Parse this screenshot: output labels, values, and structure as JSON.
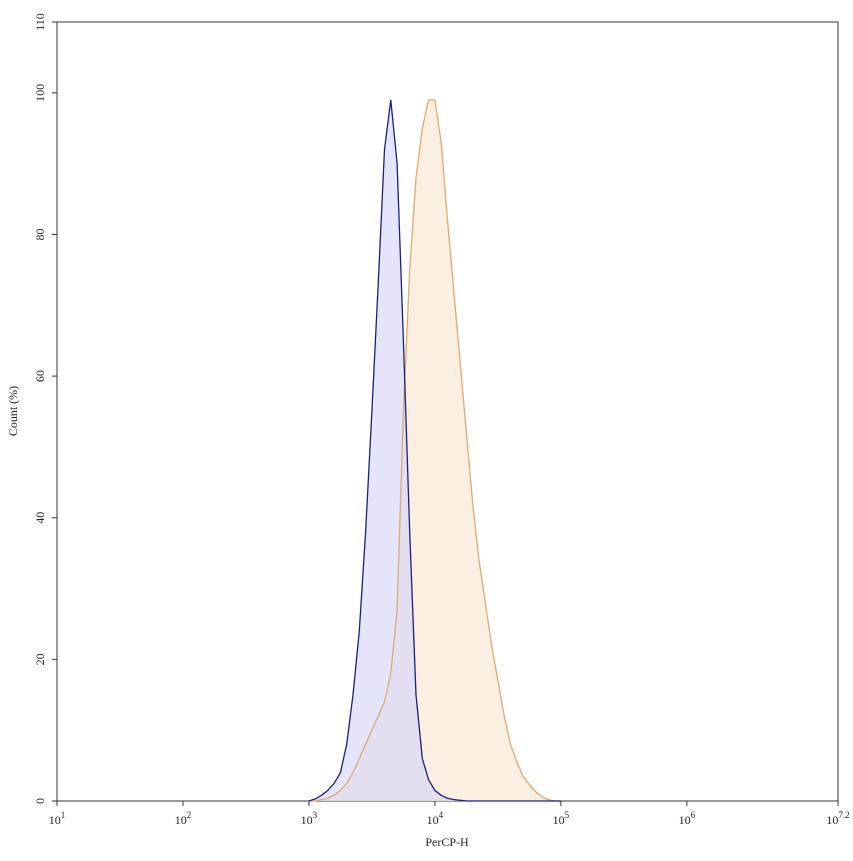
{
  "chart_data": {
    "type": "area",
    "x_label": "PerCP-H",
    "y_label": "Count (%)",
    "xscale": "log",
    "xlim": [
      10,
      15848932
    ],
    "ylim": [
      0,
      110
    ],
    "xticks": [
      {
        "value": 10,
        "label": {
          "base": "10",
          "exponent": "1"
        }
      },
      {
        "value": 100,
        "label": {
          "base": "10",
          "exponent": "2"
        }
      },
      {
        "value": 1000,
        "label": {
          "base": "10",
          "exponent": "3"
        }
      },
      {
        "value": 10000,
        "label": {
          "base": "10",
          "exponent": "4"
        }
      },
      {
        "value": 100000,
        "label": {
          "base": "10",
          "exponent": "5"
        }
      },
      {
        "value": 1000000,
        "label": {
          "base": "10",
          "exponent": "6"
        }
      },
      {
        "value": 15848932,
        "label": {
          "base": "10",
          "exponent": "7.2"
        }
      }
    ],
    "yticks": [
      0,
      20,
      40,
      60,
      80,
      100,
      110
    ],
    "x": [
      1000,
      1122,
      1259,
      1413,
      1585,
      1778,
      1995,
      2239,
      2512,
      2818,
      3162,
      3548,
      3981,
      4467,
      5012,
      5623,
      6310,
      7079,
      7943,
      8913,
      10000,
      11220,
      12589,
      14125,
      15849,
      17783,
      19953,
      22387,
      25119,
      28184,
      31623,
      35481,
      39811,
      44668,
      50119,
      56234,
      63096,
      70795,
      79433,
      89125,
      100000
    ],
    "series": [
      {
        "color": "#e0a872",
        "fill": "#fbe7d3",
        "values": [
          0,
          0,
          0.2,
          0.4,
          0.8,
          1.5,
          2.5,
          4,
          6,
          8,
          10,
          12,
          14,
          18,
          27,
          55,
          75,
          88,
          95,
          99,
          99,
          93,
          82,
          72,
          62,
          52,
          42,
          34,
          28,
          22,
          17,
          12,
          8,
          5.5,
          3.5,
          2.3,
          1.3,
          0.6,
          0.2,
          0,
          0
        ]
      },
      {
        "color": "#1a1f7a",
        "fill": "#d8d8f8",
        "values": [
          0,
          0.3,
          0.8,
          1.5,
          2.5,
          4,
          8,
          15,
          24,
          38,
          55,
          73,
          92,
          99,
          90,
          65,
          38,
          15,
          6,
          3,
          1.5,
          0.8,
          0.4,
          0.2,
          0.1,
          0,
          0,
          0,
          0,
          0,
          0,
          0,
          0,
          0,
          0,
          0,
          0,
          0,
          0,
          0,
          0
        ]
      }
    ]
  }
}
